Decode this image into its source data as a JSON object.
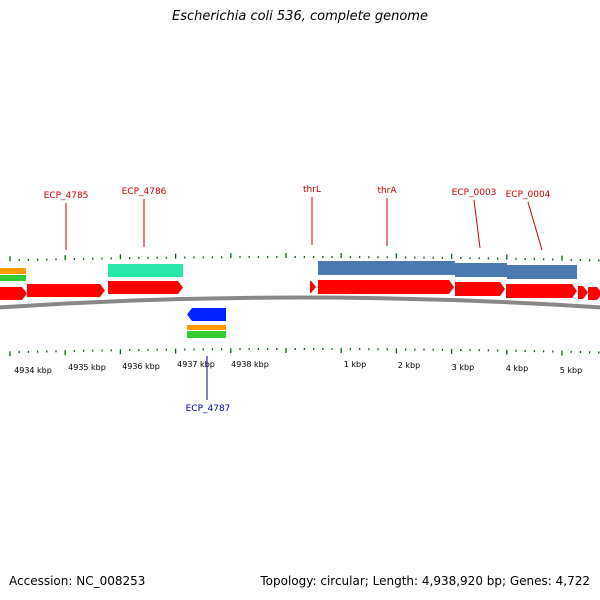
{
  "title": "Escherichia coli 536, complete genome",
  "footer": {
    "accession": "Accession: NC_008253",
    "summary": "Topology: circular; Length: 4,938,920 bp; Genes: 4,722"
  },
  "colors": {
    "gene_strand": "#ff0000",
    "gene_label_top": "#cc0000",
    "gene_label_bottom": "#0000aa",
    "cds_block": "#4a7ab0",
    "teal_block": "#29e6a9",
    "orange_block": "#ff9900",
    "green_block": "#33cc33",
    "reverse_gene": "#0022ff",
    "tick": "#006600",
    "backbone": "#888888"
  },
  "genes_top": [
    {
      "label": "ECP_4785"
    },
    {
      "label": "ECP_4786"
    },
    {
      "label": "thrL"
    },
    {
      "label": "thrA"
    },
    {
      "label": "ECP_0003"
    },
    {
      "label": "ECP_0004"
    }
  ],
  "genes_bottom": [
    {
      "label": "ECP_4787"
    }
  ],
  "tick_labels": [
    "4934 kbp",
    "4935 kbp",
    "4936 kbp",
    "4937 kbp",
    "4938 kbp",
    "1 kbp",
    "2 kbp",
    "3 kbp",
    "4 kbp",
    "5 kbp"
  ]
}
